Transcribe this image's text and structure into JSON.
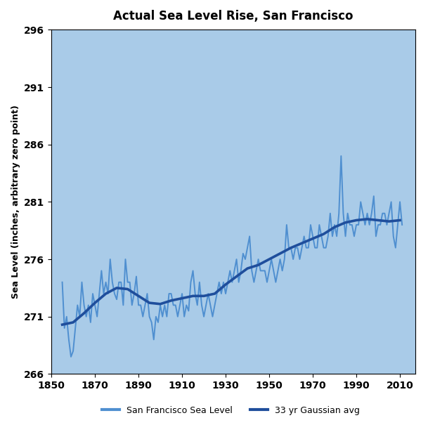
{
  "chart_data": {
    "type": "line",
    "title": "Actual Sea Level Rise, San Francisco",
    "y_label": "Sea Level (inches, arbitrary zero point)",
    "xlim": [
      1850,
      2017
    ],
    "xticks": [
      1850,
      1870,
      1890,
      1910,
      1930,
      1950,
      1970,
      1990,
      2010
    ],
    "ylim": [
      266,
      296
    ],
    "yticks": [
      266,
      271,
      276,
      281,
      286,
      291,
      296
    ],
    "grid": false,
    "legend": "bottom",
    "series": [
      {
        "name": "San Francisco Sea Level",
        "color": "#4f8fd0",
        "x": [
          1855,
          1856,
          1857,
          1858,
          1859,
          1860,
          1861,
          1862,
          1863,
          1864,
          1865,
          1866,
          1867,
          1868,
          1869,
          1870,
          1871,
          1872,
          1873,
          1874,
          1875,
          1876,
          1877,
          1878,
          1879,
          1880,
          1881,
          1882,
          1883,
          1884,
          1885,
          1886,
          1887,
          1888,
          1889,
          1890,
          1891,
          1892,
          1893,
          1894,
          1895,
          1896,
          1897,
          1898,
          1899,
          1900,
          1901,
          1902,
          1903,
          1904,
          1905,
          1906,
          1907,
          1908,
          1909,
          1910,
          1911,
          1912,
          1913,
          1914,
          1915,
          1916,
          1917,
          1918,
          1919,
          1920,
          1921,
          1922,
          1923,
          1924,
          1925,
          1926,
          1927,
          1928,
          1929,
          1930,
          1931,
          1932,
          1933,
          1934,
          1935,
          1936,
          1937,
          1938,
          1939,
          1940,
          1941,
          1942,
          1943,
          1944,
          1945,
          1946,
          1947,
          1948,
          1949,
          1950,
          1951,
          1952,
          1953,
          1954,
          1955,
          1956,
          1957,
          1958,
          1959,
          1960,
          1961,
          1962,
          1963,
          1964,
          1965,
          1966,
          1967,
          1968,
          1969,
          1970,
          1971,
          1972,
          1973,
          1974,
          1975,
          1976,
          1977,
          1978,
          1979,
          1980,
          1981,
          1982,
          1983,
          1984,
          1985,
          1986,
          1987,
          1988,
          1989,
          1990,
          1991,
          1992,
          1993,
          1994,
          1995,
          1996,
          1997,
          1998,
          1999,
          2000,
          2001,
          2002,
          2003,
          2004,
          2005,
          2006,
          2007,
          2008,
          2009,
          2010,
          2011
        ],
        "values": [
          274,
          270,
          271,
          269,
          267.5,
          268,
          270,
          272,
          271,
          274,
          272,
          271,
          272,
          270.5,
          273,
          272,
          271,
          273,
          275,
          273,
          274,
          273,
          276,
          274,
          273,
          272.5,
          274,
          274,
          272,
          276,
          274,
          274,
          272,
          273,
          274.5,
          272,
          272,
          271,
          272,
          273,
          271,
          270.5,
          269,
          271,
          270.5,
          272,
          271,
          272,
          271,
          273,
          273,
          272,
          272,
          271,
          272,
          273,
          271,
          272,
          271.5,
          274,
          275,
          273,
          272,
          274,
          272,
          271,
          272,
          273,
          272,
          271,
          272,
          273,
          274,
          273,
          274,
          273,
          274,
          275,
          274,
          275,
          276,
          274,
          275,
          276.5,
          276,
          277,
          278,
          275,
          274,
          275,
          276,
          275,
          275,
          275,
          274,
          275,
          276,
          275,
          274,
          275,
          276,
          275,
          276,
          279,
          277,
          277,
          276,
          277,
          277,
          276,
          277,
          278,
          277,
          277,
          279,
          278,
          277,
          277,
          279,
          278,
          277,
          277,
          278,
          280,
          278,
          279,
          278,
          280,
          285,
          280,
          278,
          280,
          279,
          279,
          278,
          279,
          279,
          281,
          280,
          279,
          280,
          279,
          280,
          281.5,
          278,
          279,
          279,
          280,
          280,
          279,
          280,
          281,
          278,
          277,
          279,
          281,
          279
        ]
      },
      {
        "name": "33 yr Gaussian avg",
        "color": "#1f4e9c",
        "x": [
          1855,
          1860,
          1865,
          1870,
          1875,
          1880,
          1885,
          1890,
          1895,
          1900,
          1905,
          1910,
          1915,
          1920,
          1925,
          1930,
          1935,
          1940,
          1945,
          1950,
          1955,
          1960,
          1965,
          1970,
          1975,
          1980,
          1985,
          1990,
          1995,
          2000,
          2005,
          2010
        ],
        "values": [
          270.3,
          270.5,
          271.3,
          272.2,
          273,
          273.5,
          273.4,
          272.8,
          272.2,
          272.1,
          272.4,
          272.6,
          272.8,
          272.8,
          273,
          273.8,
          274.5,
          275.2,
          275.5,
          276,
          276.5,
          277,
          277.4,
          277.8,
          278.2,
          278.8,
          279.2,
          279.4,
          279.5,
          279.4,
          279.3,
          279.4
        ]
      }
    ]
  }
}
